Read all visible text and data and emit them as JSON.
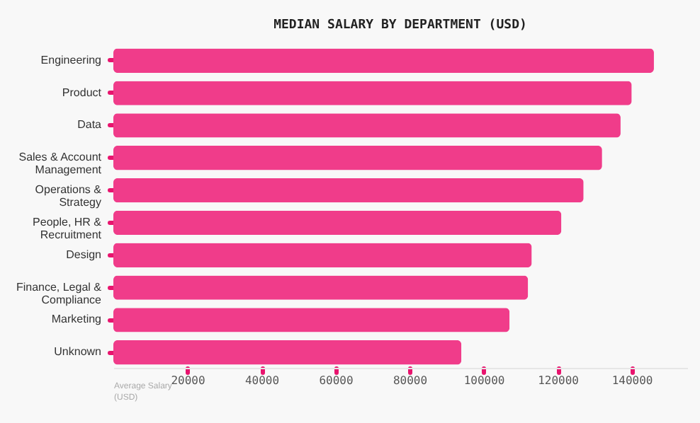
{
  "chart_data": {
    "type": "bar",
    "orientation": "horizontal",
    "title": "MEDIAN SALARY BY DEPARTMENT (USD)",
    "xlabel": "Average Salary (USD)",
    "categories": [
      "Engineering",
      "Product",
      "Data",
      "Sales & Account Management",
      "Operations & Strategy",
      "People, HR & Recruitment",
      "Design",
      "Finance, Legal & Compliance",
      "Marketing",
      "Unknown"
    ],
    "values": [
      146000,
      140000,
      137000,
      132000,
      127000,
      121000,
      113000,
      112000,
      107000,
      94000
    ],
    "color": "#f03c8a",
    "xlim": [
      0,
      155000
    ],
    "xticks": [
      20000,
      40000,
      60000,
      80000,
      100000,
      120000,
      140000
    ],
    "grid": false
  }
}
